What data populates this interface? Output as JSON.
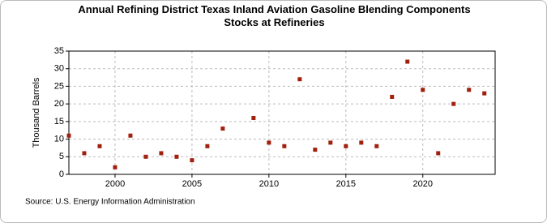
{
  "chart_data": {
    "type": "scatter",
    "title": "Annual Refining District Texas Inland Aviation Gasoline Blending Components Stocks at Refineries",
    "y_label": "Thousand Barrels",
    "source": "Source: U.S. Energy Information Administration",
    "color": "#a0200e",
    "x": [
      1997,
      1998,
      1999,
      2000,
      2001,
      2002,
      2003,
      2004,
      2005,
      2006,
      2007,
      2009,
      2010,
      2011,
      2012,
      2013,
      2014,
      2015,
      2016,
      2017,
      2018,
      2019,
      2020,
      2021,
      2022,
      2023,
      2024
    ],
    "values": [
      11,
      6,
      8,
      2,
      11,
      5,
      6,
      5,
      4,
      8,
      13,
      16,
      9,
      8,
      27,
      7,
      9,
      8,
      9,
      8,
      22,
      32,
      24,
      6,
      20,
      24,
      23
    ],
    "xlim": [
      1997,
      2024.7
    ],
    "xticks": [
      2000,
      2005,
      2010,
      2015,
      2020
    ],
    "ylim": [
      0,
      35
    ],
    "yticks": [
      0,
      5,
      10,
      15,
      20,
      25,
      30,
      35
    ],
    "grid": true
  }
}
